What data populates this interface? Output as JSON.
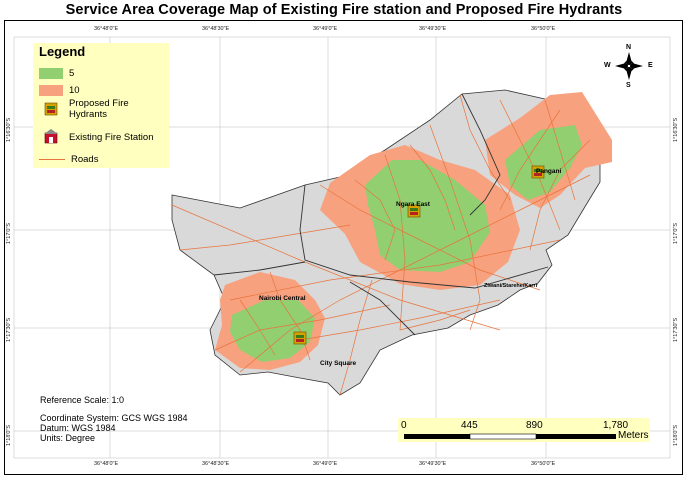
{
  "title": "Service Area Coverage Map of Existing Fire station and Proposed Fire Hydrants",
  "legend": {
    "heading": "Legend",
    "items": [
      {
        "label": "5",
        "color": "#91cf70",
        "kind": "swatch"
      },
      {
        "label": "10",
        "color": "#f7a17e",
        "kind": "swatch"
      },
      {
        "label": "Proposed Fire Hydrants",
        "kind": "hydrant-icon"
      },
      {
        "label": "Existing Fire Station",
        "kind": "fire-station-icon"
      },
      {
        "label": "Roads",
        "color": "#e8743d",
        "kind": "line"
      }
    ]
  },
  "compass": {
    "n": "N",
    "s": "S",
    "e": "E",
    "w": "W"
  },
  "lon_ticks": [
    "36°48'0\"E",
    "36°48'30\"E",
    "36°49'0\"E",
    "36°49'30\"E",
    "36°50'0\"E"
  ],
  "lat_ticks": [
    "1°16'30\"S",
    "1°17'0\"S",
    "1°17'30\"S",
    "1°18'0\"S"
  ],
  "places": {
    "pangani": "Pangani",
    "ngara_east": "Ngara East",
    "ziwani": "Ziwani/Starehe/Karrr",
    "nairobi_central": "Nairobi Central",
    "city_square": "City Square"
  },
  "notes": {
    "reference_scale": "Reference Scale: 1:0",
    "coordinate_system": "Coordinate System: GCS WGS 1984",
    "datum": "Datum: WGS 1984",
    "units": "Units: Degree"
  },
  "scalebar": {
    "labels": [
      "0",
      "445",
      "890",
      "1,780"
    ],
    "unit": "Meters"
  },
  "colors": {
    "area": "#d9d9d9",
    "zone5": "#91cf70",
    "zone10": "#f7a17e",
    "roads": "#e8743d",
    "legend_bg": "#ffffc0"
  }
}
